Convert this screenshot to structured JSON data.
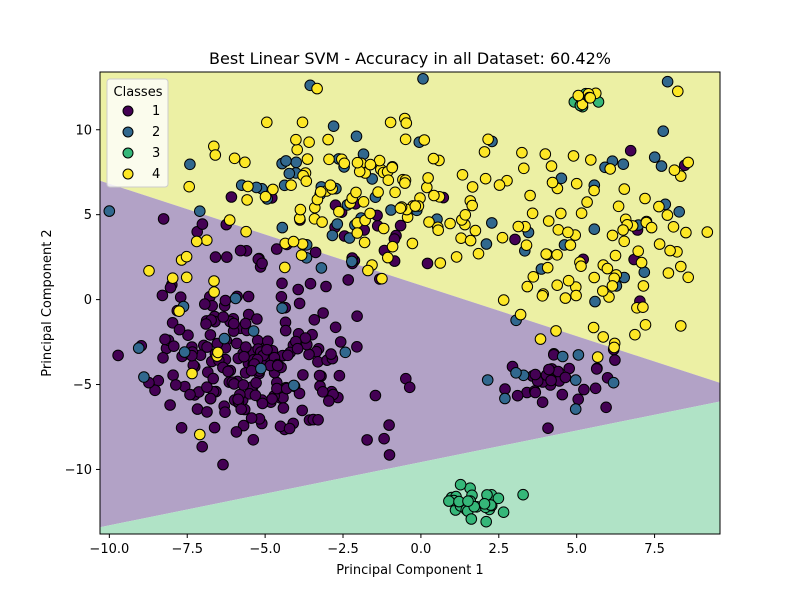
{
  "chart_data": {
    "type": "scatter",
    "title": "Best Linear SVM - Accuracy in all Dataset: 60.42%",
    "xlabel": "Principal Component 1",
    "ylabel": "Principal Component 2",
    "xlim": [
      -10.3,
      9.6
    ],
    "ylim": [
      -13.8,
      13.4
    ],
    "xticks": [
      -10,
      -7.5,
      -5,
      -2.5,
      0,
      2.5,
      5,
      7.5
    ],
    "xtick_labels": [
      "−10.0",
      "−7.5",
      "−5.0",
      "−2.5",
      "0.0",
      "2.5",
      "5.0",
      "7.5"
    ],
    "yticks": [
      -10,
      -5,
      0,
      5,
      10
    ],
    "ytick_labels": [
      "−10",
      "−5",
      "0",
      "5",
      "10"
    ],
    "regions": [
      {
        "name": "class 4 region",
        "color": "#ecf0a4"
      },
      {
        "name": "class 1 region",
        "color": "#b2a2c6"
      },
      {
        "name": "class 3 region",
        "color": "#b0e3c6"
      }
    ],
    "boundaries": [
      {
        "name": "1-4 boundary",
        "x": [
          -10.3,
          9.6
        ],
        "y": [
          7.0,
          -4.9
        ]
      },
      {
        "name": "1-3 boundary",
        "x": [
          -10.3,
          9.6
        ],
        "y": [
          -13.4,
          -6.0
        ]
      }
    ],
    "legend": {
      "title": "Classes",
      "placement": "top-left",
      "entries": [
        {
          "label": "1",
          "color": "#440154"
        },
        {
          "label": "2",
          "color": "#31688e"
        },
        {
          "label": "3",
          "color": "#35b779"
        },
        {
          "label": "4",
          "color": "#fde725"
        }
      ]
    },
    "clusters": [
      {
        "class": "1",
        "cx": -5.2,
        "cy": -3.8,
        "sx": 1.7,
        "sy": 2.3,
        "n": 210
      },
      {
        "class": "1",
        "cx": -3.5,
        "cy": 4.0,
        "sx": 2.2,
        "sy": 1.8,
        "n": 40
      },
      {
        "class": "1",
        "cx": 4.3,
        "cy": -4.8,
        "sx": 0.9,
        "sy": 0.9,
        "n": 35
      },
      {
        "class": "1",
        "cx": 6.3,
        "cy": 2.0,
        "sx": 1.0,
        "sy": 3.0,
        "n": 6
      },
      {
        "class": "2",
        "cx": -2.5,
        "cy": 5.6,
        "sx": 2.5,
        "sy": 2.6,
        "n": 45
      },
      {
        "class": "2",
        "cx": 6.2,
        "cy": 3.5,
        "sx": 1.5,
        "sy": 3.5,
        "n": 22
      },
      {
        "class": "2",
        "cx": 4.2,
        "cy": -4.6,
        "sx": 0.9,
        "sy": 1.0,
        "n": 8
      },
      {
        "class": "2",
        "cx": -6.0,
        "cy": -3.5,
        "sx": 2.0,
        "sy": 2.0,
        "n": 10
      },
      {
        "class": "3",
        "cx": 1.8,
        "cy": -11.8,
        "sx": 0.6,
        "sy": 0.5,
        "n": 30
      },
      {
        "class": "3",
        "cx": 5.2,
        "cy": 11.7,
        "sx": 0.3,
        "sy": 0.3,
        "n": 6
      },
      {
        "class": "4",
        "cx": -2.0,
        "cy": 6.3,
        "sx": 2.8,
        "sy": 2.2,
        "n": 120
      },
      {
        "class": "4",
        "cx": 5.8,
        "cy": 3.0,
        "sx": 1.6,
        "sy": 3.6,
        "n": 90
      },
      {
        "class": "4",
        "cx": -7.5,
        "cy": 0.0,
        "sx": 0.8,
        "sy": 3.5,
        "n": 14
      },
      {
        "class": "4",
        "cx": 5.3,
        "cy": 11.7,
        "sx": 0.2,
        "sy": 0.2,
        "n": 5
      }
    ]
  }
}
